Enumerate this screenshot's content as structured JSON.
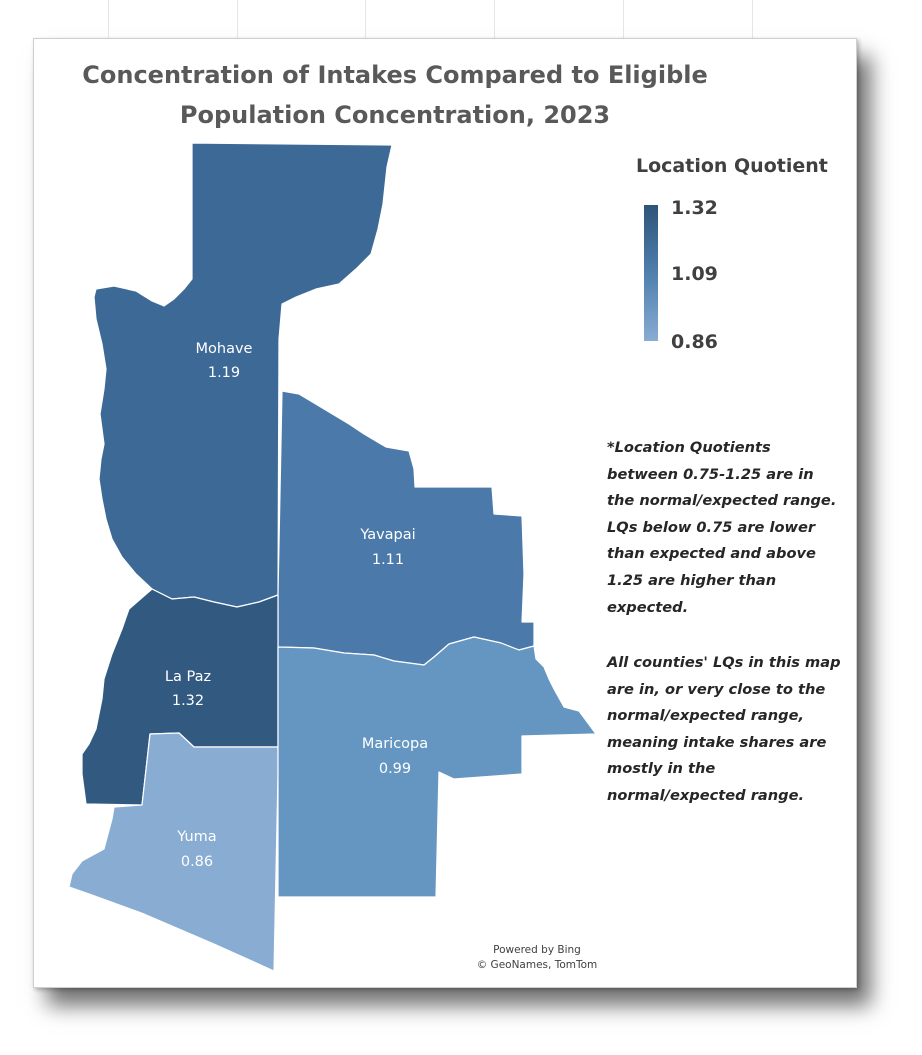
{
  "map": {
    "title_line1": "Concentration of Intakes Compared to Eligible",
    "title_line2": "Population Concentration, 2023",
    "legend": {
      "title": "Location Quotient",
      "max": "1.32",
      "mid": "1.09",
      "min": "0.86",
      "color_max": "#2e5478",
      "color_mid": "#4f7fae",
      "color_min": "#88acd2"
    },
    "counties": [
      {
        "name": "Mohave",
        "value": "1.19",
        "color": "#3d6997"
      },
      {
        "name": "Yavapai",
        "value": "1.11",
        "color": "#4a79aa"
      },
      {
        "name": "La Paz",
        "value": "1.32",
        "color": "#325a80"
      },
      {
        "name": "Maricopa",
        "value": "0.99",
        "color": "#6596c1"
      },
      {
        "name": "Yuma",
        "value": "0.86",
        "color": "#88acd2"
      }
    ],
    "note_1": "*Location Quotients between 0.75-1.25 are in the normal/expected range. LQs below 0.75 are lower than expected and above 1.25 are higher than expected.",
    "note_2": "All counties' LQs in this map are in, or very close to the normal/expected range, meaning intake shares are mostly in the normal/expected range.",
    "credit_line1": "Powered by Bing",
    "credit_line2": "© GeoNames, TomTom"
  }
}
